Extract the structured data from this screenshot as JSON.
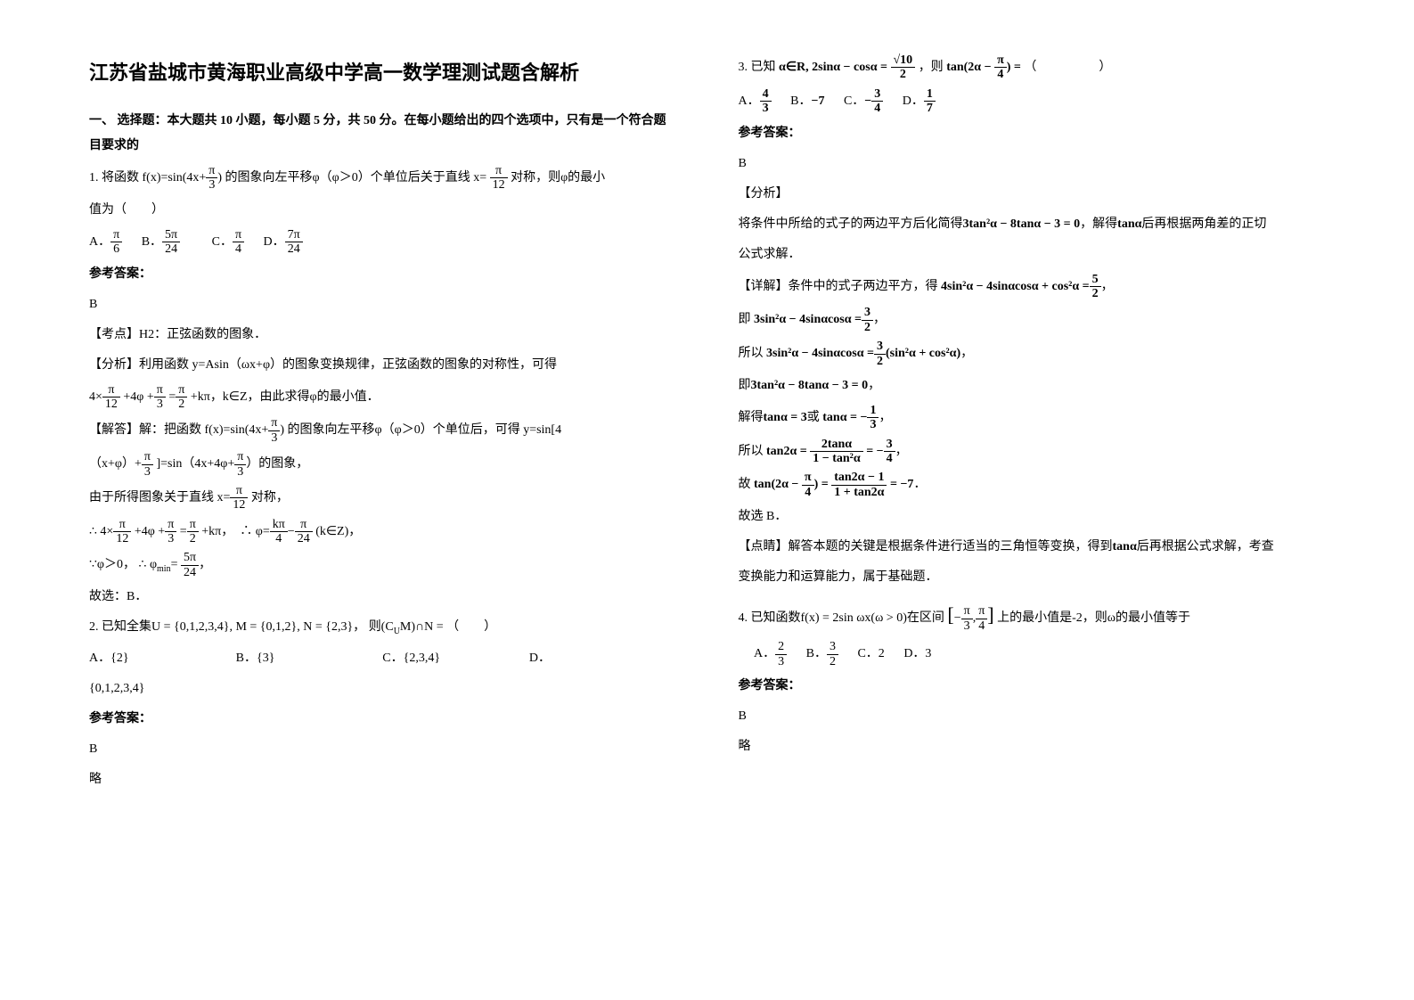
{
  "title": "江苏省盐城市黄海职业高级中学高一数学理测试题含解析",
  "section1_heading": "一、 选择题：本大题共 10 小题，每小题 5 分，共 50 分。在每小题给出的四个选项中，只有是一个符合题目要求的",
  "q1": {
    "stem_a": "1. 将函数",
    "stem_b": "的图象向左平移φ（φ＞0）个单位后关于直线 x=",
    "stem_c": "对称，则φ的最小",
    "stem_d": "值为（　　）",
    "fexpr": "f(x)=sin(4x+",
    "fexpr_close": ")",
    "pi": "π",
    "three": "3",
    "twelve": "12",
    "optA_l": "A．",
    "optB_l": "B．",
    "optC_l": "C．",
    "optD_l": "D．",
    "a_num": "π",
    "a_den": "6",
    "b_num": "5π",
    "b_den": "24",
    "c_num": "π",
    "c_den": "4",
    "d_num": "7π",
    "d_den": "24",
    "ans_label": "参考答案：",
    "ans": "B",
    "kaodian_l": "【考点】",
    "kaodian": "H2：正弦函数的图象．",
    "fenxi_l": "【分析】",
    "fenxi": "利用函数 y=Asin（ωx+φ）的图象变换规律，正弦函数的图象的对称性，可得",
    "line_eq_a": "4×",
    "line_eq_b": "+4φ +",
    "line_eq_c": "=",
    "line_eq_d": "+kπ",
    "line_eq_tail": "，k∈Z，由此求得φ的最小值．",
    "jieda_l": "【解答】",
    "jieda_a": "解：把函数",
    "jieda_b": "的图象向左平移φ（φ＞0）个单位后，可得 y=sin[4",
    "jieda_c": "（x+φ）+",
    "jieda_d": "]=sin（4x+4φ+",
    "jieda_e": "）的图象，",
    "sym_line_a": "由于所得图象关于直线",
    "sym_line_b": "对称，",
    "x_eq": "x=",
    "therefore": "∴",
    "because": "∵",
    "eq2_tail": "(k∈Z)",
    "k4": "kπ",
    "k4d": "4",
    "p24": "π",
    "p24d": "24",
    "phi_gt0": "φ＞0，",
    "phi_min_l": "φ",
    "phi_min_sub": "min",
    "phi_min_eq": "=",
    "five_pi": "5π",
    "twentyfour": "24",
    "guxuan": "故选：B．",
    "dot": "．",
    "comma": "，"
  },
  "q2": {
    "stem_a": "2. 已知全集",
    "U": "U = {0,1,2,3,4}, M = {0,1,2}, N = {2,3}，",
    "stem_b": "则(C",
    "stem_c": "M)∩N =",
    "paren": "（　　）",
    "sub_u": "U",
    "optA": "A．",
    "a": "{2}",
    "optB": "B．",
    "b": "{3}",
    "optC": "C．",
    "c": "{2,3,4}",
    "optD": "D．",
    "d": "{0,1,2,3,4}",
    "ans_label": "参考答案：",
    "ans": "B",
    "lue": "略"
  },
  "q3": {
    "stem_a": "3. 已知",
    "cond_a": "α∈R, 2sinα − cosα =",
    "cond_b": "，则",
    "cond_c": "tan(2α − ",
    "cond_d": ") =",
    "paren": "（　　　　　）",
    "sqrt10": "√10",
    "two": "2",
    "pi": "π",
    "four": "4",
    "optA": "A．",
    "a_n": "4",
    "a_d": "3",
    "optB": "B．",
    "b": "−7",
    "optC": "C．",
    "c_n": "3",
    "c_d": "4",
    "c_sign": "−",
    "optD": "D．",
    "d_n": "1",
    "d_d": "7",
    "ans_label": "参考答案：",
    "ans": "B",
    "fenxi_l": "【分析】",
    "fenxi": "将条件中所给的式子的两边平方后化简得",
    "eq1": "3tan²α − 8tanα − 3 = 0",
    "fenxi_b": "，解得",
    "tan_a": "tanα",
    "fenxi_c": "后再根据两角差的正切",
    "fenxi_d": "公式求解．",
    "xiangjie_l": "【详解】",
    "xiangjie_a": "条件中的式子两边平方，得",
    "eq2": "4sin²α − 4sinαcosα + cos²α =",
    "five": "5",
    "ji_a": "即",
    "eq3": "3sin²α − 4sinαcosα =",
    "three": "3",
    "suoyi": "所以",
    "eq4": "3sin²α − 4sinαcosα =",
    "eq4_b": "(sin²α + cos²α)",
    "ji_b": "即",
    "eq5": "3tan²α − 8tanα − 3 = 0",
    "jiede": "解得",
    "tan3": "tanα = 3",
    "huo": "或",
    "tanneg": "tanα = −",
    "one": "1",
    "eq6_a": "tan2α =",
    "eq6_n": "2tanα",
    "eq6_d": "1 − tan²α",
    "eq6_b": "= −",
    "gu": "故",
    "eq7_a": "tan(2α − ",
    "eq7_b": ") =",
    "eq7_n": "tan2α − 1",
    "eq7_d": "1 + tan2α",
    "eq7_c": "= −7",
    "guxuan": "故选 B．",
    "dianjing_l": "【点睛】",
    "dianjing": "解答本题的关键是根据条件进行适当的三角恒等变换，得到",
    "dianjing_b": "后再根据公式求解，考查",
    "dianjing_c": "变换能力和运算能力，属于基础题．"
  },
  "q4": {
    "stem_a": "4. 已知函数",
    "f": "f(x) = 2sin ωx(ω > 0)",
    "stem_b": "在区间",
    "int_l": "[",
    "neg": "−",
    "pi": "π",
    "three": "3",
    "comma": ",",
    "four": "4",
    "int_r": "]",
    "stem_c": "上的最小值是-2，则",
    "omega": "ω",
    "stem_d": "的最小值等于",
    "optA": "A．",
    "a_n": "2",
    "a_d": "3",
    "optB": "B．",
    "b_n": "3",
    "b_d": "2",
    "optC": "C．2",
    "optD": "D．3",
    "ans_label": "参考答案：",
    "ans": "B",
    "lue": "略"
  }
}
